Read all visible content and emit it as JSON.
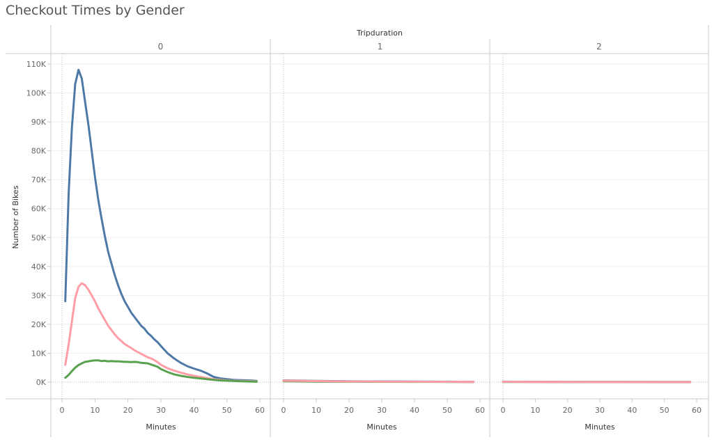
{
  "title": "Checkout Times by Gender",
  "column_header_title": "Tripduration",
  "colors": {
    "series_1": "#4e79a7",
    "series_2": "#ff9da7",
    "series_0": "#59a14f",
    "frame": "#c8c8c8",
    "grid": "#eeeeee"
  },
  "chart_data": {
    "type": "line",
    "title": "Checkout Times by Gender",
    "facet_label": "Tripduration",
    "ylabel": "Number of Bikes",
    "xlabel": "Minutes",
    "ylim": [
      0,
      112000
    ],
    "yticks": [
      0,
      10000,
      20000,
      30000,
      40000,
      50000,
      60000,
      70000,
      80000,
      90000,
      100000,
      110000
    ],
    "ytick_labels": [
      "0K",
      "10K",
      "20K",
      "30K",
      "40K",
      "50K",
      "60K",
      "70K",
      "80K",
      "90K",
      "100K",
      "110K"
    ],
    "xlim": [
      0,
      60
    ],
    "xticks": [
      0,
      10,
      20,
      30,
      40,
      50,
      60
    ],
    "xtick_labels": [
      "0",
      "10",
      "20",
      "30",
      "40",
      "50",
      "60"
    ],
    "grid": true,
    "legend": "none",
    "panels": [
      {
        "label": "0",
        "series": [
          {
            "color": "#4e79a7",
            "x": [
              1,
              2,
              3,
              4,
              5,
              6,
              7,
              8,
              9,
              10,
              11,
              12,
              13,
              14,
              15,
              16,
              17,
              18,
              19,
              20,
              21,
              22,
              23,
              24,
              25,
              26,
              27,
              28,
              29,
              30,
              32,
              34,
              36,
              38,
              40,
              42,
              44,
              46,
              48,
              50,
              52,
              54,
              56,
              58,
              59
            ],
            "y": [
              28000,
              65000,
              88000,
              103000,
              108000,
              105000,
              97000,
              89000,
              80000,
              71000,
              63000,
              56500,
              50500,
              45000,
              41000,
              37000,
              33500,
              30500,
              28000,
              26000,
              24000,
              22500,
              21000,
              19500,
              18500,
              17000,
              16000,
              14800,
              13800,
              12500,
              10000,
              8200,
              6700,
              5500,
              4700,
              4000,
              3000,
              1800,
              1300,
              1000,
              800,
              700,
              600,
              500,
              400
            ]
          },
          {
            "color": "#ff9da7",
            "x": [
              1,
              2,
              3,
              4,
              5,
              6,
              7,
              8,
              9,
              10,
              11,
              12,
              13,
              14,
              15,
              16,
              17,
              18,
              19,
              20,
              21,
              22,
              23,
              24,
              25,
              26,
              27,
              28,
              29,
              30,
              32,
              34,
              36,
              38,
              40,
              42,
              44,
              46,
              48,
              50,
              52,
              54,
              56,
              58,
              59
            ],
            "y": [
              6000,
              13000,
              21000,
              29000,
              33000,
              34200,
              33500,
              32000,
              30000,
              28000,
              25500,
              23500,
              21500,
              19500,
              18000,
              16500,
              15200,
              14200,
              13200,
              12500,
              11800,
              11000,
              10400,
              9800,
              9200,
              8600,
              8200,
              7600,
              6900,
              6000,
              4800,
              4000,
              3300,
              2700,
              2200,
              1800,
              1400,
              1000,
              800,
              600,
              500,
              400,
              350,
              300,
              250
            ]
          },
          {
            "color": "#59a14f",
            "x": [
              1,
              2,
              3,
              4,
              5,
              6,
              7,
              8,
              9,
              10,
              11,
              12,
              13,
              14,
              15,
              16,
              17,
              18,
              19,
              20,
              21,
              22,
              23,
              24,
              25,
              26,
              27,
              28,
              29,
              30,
              32,
              34,
              36,
              38,
              40,
              42,
              44,
              46,
              48,
              50,
              52,
              54,
              56,
              58,
              59
            ],
            "y": [
              1500,
              2500,
              3800,
              5000,
              5900,
              6500,
              7000,
              7200,
              7400,
              7500,
              7500,
              7300,
              7400,
              7200,
              7300,
              7200,
              7200,
              7100,
              7000,
              7000,
              6900,
              7000,
              6900,
              6700,
              6600,
              6500,
              6100,
              5700,
              5300,
              4500,
              3500,
              2700,
              2200,
              1800,
              1500,
              1300,
              1000,
              800,
              600,
              500,
              400,
              300,
              250,
              200,
              150
            ]
          }
        ]
      },
      {
        "label": "1",
        "series": [
          {
            "color": "#4e79a7",
            "x": [
              0,
              10,
              20,
              30,
              40,
              50,
              58
            ],
            "y": [
              600,
              400,
              300,
              250,
              200,
              150,
              100
            ]
          },
          {
            "color": "#59a14f",
            "x": [
              0,
              10,
              20,
              30,
              40,
              50,
              58
            ],
            "y": [
              300,
              200,
              150,
              120,
              100,
              80,
              60
            ]
          },
          {
            "color": "#ff9da7",
            "x": [
              0,
              10,
              20,
              30,
              40,
              50,
              58
            ],
            "y": [
              500,
              350,
              250,
              200,
              150,
              120,
              100
            ]
          }
        ]
      },
      {
        "label": "2",
        "series": [
          {
            "color": "#4e79a7",
            "x": [
              0,
              10,
              20,
              30,
              40,
              50,
              58
            ],
            "y": [
              150,
              120,
              100,
              90,
              80,
              70,
              60
            ]
          },
          {
            "color": "#59a14f",
            "x": [
              0,
              10,
              20,
              30,
              40,
              50,
              58
            ],
            "y": [
              80,
              70,
              60,
              50,
              40,
              30,
              20
            ]
          },
          {
            "color": "#ff9da7",
            "x": [
              0,
              10,
              20,
              30,
              40,
              50,
              58
            ],
            "y": [
              120,
              100,
              90,
              80,
              70,
              60,
              50
            ]
          }
        ]
      }
    ]
  }
}
